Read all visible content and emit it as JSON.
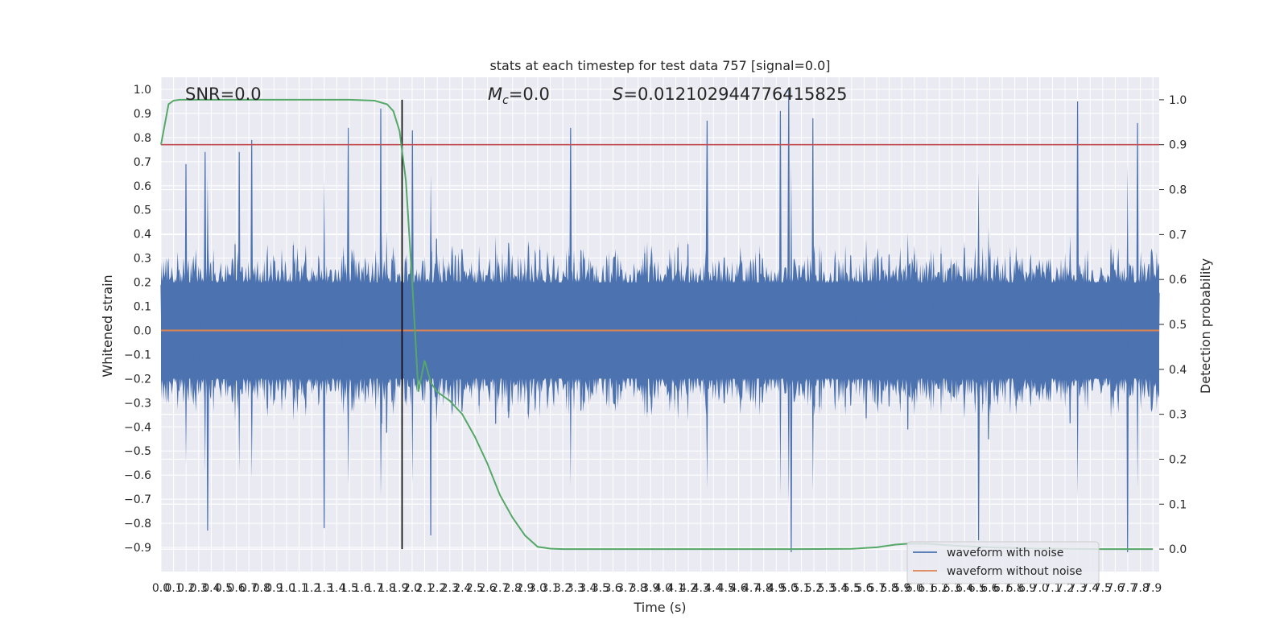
{
  "chart_data": {
    "type": "line",
    "title": "stats at each timestep for test data 757 [signal=0.0]",
    "xlabel": "Time (s)",
    "ylabel": "Whitened strain",
    "y2label": "Detection probability",
    "xlim": [
      0.0,
      7.95
    ],
    "ylim": [
      -1.0,
      1.05
    ],
    "y2lim": [
      -0.05,
      1.05
    ],
    "x_ticks": [
      "0.0",
      "0.1",
      "0.2",
      "0.3",
      "0.4",
      "0.5",
      "0.6",
      "0.7",
      "0.8",
      "0.9",
      "1.0",
      "1.1",
      "1.2",
      "1.3",
      "1.4",
      "1.5",
      "1.6",
      "1.7",
      "1.8",
      "1.9",
      "2.0",
      "2.1",
      "2.2",
      "2.3",
      "2.4",
      "2.5",
      "2.6",
      "2.7",
      "2.8",
      "2.9",
      "3.0",
      "3.1",
      "3.2",
      "3.3",
      "3.4",
      "3.5",
      "3.6",
      "3.7",
      "3.8",
      "3.9",
      "4.0",
      "4.1",
      "4.2",
      "4.3",
      "4.4",
      "4.5",
      "4.6",
      "4.7",
      "4.8",
      "4.9",
      "5.0",
      "5.1",
      "5.2",
      "5.3",
      "5.4",
      "5.5",
      "5.6",
      "5.7",
      "5.8",
      "5.9",
      "6.0",
      "6.1",
      "6.2",
      "6.3",
      "6.4",
      "6.5",
      "6.6",
      "6.7",
      "6.8",
      "6.9",
      "7.0",
      "7.1",
      "7.2",
      "7.3",
      "7.4",
      "7.5",
      "7.6",
      "7.7",
      "7.8",
      "7.9"
    ],
    "y_ticks": [
      "1.0",
      "0.9",
      "0.8",
      "0.7",
      "0.6",
      "0.5",
      "0.4",
      "0.3",
      "0.2",
      "0.1",
      "0.0",
      "−0.1",
      "−0.2",
      "−0.3",
      "−0.4",
      "−0.5",
      "−0.6",
      "−0.7",
      "−0.8",
      "−0.9"
    ],
    "y2_ticks": [
      "1.0",
      "0.9",
      "0.8",
      "0.7",
      "0.6",
      "0.5",
      "0.4",
      "0.3",
      "0.2",
      "0.1",
      "0.0"
    ],
    "grid": true,
    "legend_position": "lower-right",
    "annotations": {
      "snr": "SNR=0.0",
      "mc": "=0.0",
      "mc_symbol": "M",
      "mc_sub": "c",
      "s": "=0.012102944776415825",
      "s_symbol": "S"
    },
    "vertical_marker_x": 1.92,
    "threshold_y2": 0.9,
    "series": [
      {
        "name": "waveform with noise",
        "color": "#4c72b0",
        "noise_sample_count": 1200,
        "envelope_mean": [
          0.0,
          0.0
        ],
        "spike_peaks": [
          {
            "x": 0.2,
            "y": 0.69
          },
          {
            "x": 0.35,
            "y": 0.74
          },
          {
            "x": 0.62,
            "y": 0.74
          },
          {
            "x": 0.72,
            "y": 0.79
          },
          {
            "x": 1.49,
            "y": 0.84
          },
          {
            "x": 1.75,
            "y": 0.92
          },
          {
            "x": 2.0,
            "y": 0.83
          },
          {
            "x": 3.26,
            "y": 0.84
          },
          {
            "x": 4.35,
            "y": 0.87
          },
          {
            "x": 5.0,
            "y": 1.0
          },
          {
            "x": 4.93,
            "y": 0.91
          },
          {
            "x": 5.19,
            "y": 0.88
          },
          {
            "x": 7.3,
            "y": 0.95
          },
          {
            "x": 7.78,
            "y": 0.86
          },
          {
            "x": 0.37,
            "y": -0.83
          },
          {
            "x": 1.3,
            "y": -0.82
          },
          {
            "x": 2.15,
            "y": -0.85
          },
          {
            "x": 5.02,
            "y": -0.92
          },
          {
            "x": 6.51,
            "y": -0.87
          },
          {
            "x": 7.7,
            "y": -0.92
          }
        ]
      },
      {
        "name": "waveform without noise",
        "color": "#dd8452",
        "x": [
          0.0,
          7.95
        ],
        "y": [
          0.0,
          0.0
        ]
      },
      {
        "name": "detection probability",
        "color": "#55a868",
        "axis": "right",
        "x": [
          0.0,
          0.06,
          0.1,
          0.15,
          0.3,
          0.6,
          1.0,
          1.5,
          1.7,
          1.8,
          1.85,
          1.9,
          1.95,
          2.0,
          2.05,
          2.1,
          2.15,
          2.2,
          2.3,
          2.4,
          2.5,
          2.6,
          2.7,
          2.8,
          2.9,
          3.0,
          3.1,
          3.2,
          3.3,
          4.0,
          5.0,
          5.5,
          5.7,
          5.85,
          5.95,
          6.1,
          6.3,
          6.6,
          7.0,
          7.5,
          7.9
        ],
        "y": [
          0.9,
          0.99,
          0.998,
          1.0,
          1.0,
          1.0,
          1.0,
          1.0,
          0.998,
          0.99,
          0.975,
          0.93,
          0.82,
          0.6,
          0.35,
          0.42,
          0.37,
          0.35,
          0.33,
          0.3,
          0.25,
          0.19,
          0.12,
          0.07,
          0.03,
          0.005,
          0.001,
          0.0,
          0.0,
          0.0,
          0.0,
          0.0005,
          0.004,
          0.01,
          0.012,
          0.012,
          0.008,
          0.004,
          0.001,
          0.0,
          0.0
        ]
      }
    ]
  },
  "legend": {
    "items": [
      {
        "label": "waveform with noise",
        "color": "#4c72b0"
      },
      {
        "label": "waveform without noise",
        "color": "#dd8452"
      }
    ]
  },
  "colors": {
    "plot_bg": "#eaeaf2",
    "grid": "#ffffff",
    "threshold": "#c44e52",
    "marker": "#000000"
  }
}
